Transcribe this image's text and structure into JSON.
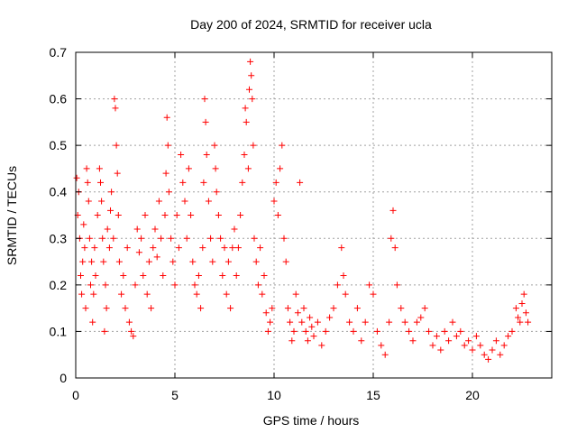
{
  "chart_data": {
    "type": "scatter",
    "title": "Day 200 of 2024, SRMTID for receiver ucla",
    "xlabel": "GPS time / hours",
    "ylabel": "SRMTID / TECUs",
    "xlim": [
      0,
      24
    ],
    "ylim": [
      0,
      0.7
    ],
    "x_ticks": [
      0,
      5,
      10,
      15,
      20
    ],
    "x_tick_labels": [
      "0",
      "5",
      "10",
      "15",
      "20"
    ],
    "y_ticks": [
      0,
      0.1,
      0.2,
      0.3,
      0.4,
      0.5,
      0.6,
      0.7
    ],
    "y_tick_labels": [
      "0",
      "0.1",
      "0.2",
      "0.3",
      "0.4",
      "0.5",
      "0.6",
      "0.7"
    ],
    "grid": true,
    "marker": "+",
    "color": "#ff0000",
    "series": [
      {
        "name": "SRMTID",
        "points": [
          [
            0.05,
            0.43
          ],
          [
            0.1,
            0.35
          ],
          [
            0.15,
            0.4
          ],
          [
            0.2,
            0.3
          ],
          [
            0.25,
            0.22
          ],
          [
            0.3,
            0.18
          ],
          [
            0.35,
            0.25
          ],
          [
            0.4,
            0.33
          ],
          [
            0.45,
            0.28
          ],
          [
            0.5,
            0.15
          ],
          [
            0.55,
            0.45
          ],
          [
            0.6,
            0.42
          ],
          [
            0.65,
            0.38
          ],
          [
            0.7,
            0.3
          ],
          [
            0.75,
            0.2
          ],
          [
            0.8,
            0.25
          ],
          [
            0.85,
            0.12
          ],
          [
            0.9,
            0.18
          ],
          [
            0.95,
            0.28
          ],
          [
            1.0,
            0.22
          ],
          [
            1.1,
            0.35
          ],
          [
            1.2,
            0.45
          ],
          [
            1.25,
            0.42
          ],
          [
            1.3,
            0.38
          ],
          [
            1.35,
            0.3
          ],
          [
            1.4,
            0.25
          ],
          [
            1.45,
            0.1
          ],
          [
            1.5,
            0.2
          ],
          [
            1.55,
            0.15
          ],
          [
            1.6,
            0.32
          ],
          [
            1.7,
            0.28
          ],
          [
            1.75,
            0.36
          ],
          [
            1.8,
            0.4
          ],
          [
            1.9,
            0.3
          ],
          [
            1.95,
            0.6
          ],
          [
            2.0,
            0.58
          ],
          [
            2.05,
            0.5
          ],
          [
            2.1,
            0.44
          ],
          [
            2.15,
            0.35
          ],
          [
            2.2,
            0.25
          ],
          [
            2.3,
            0.18
          ],
          [
            2.4,
            0.22
          ],
          [
            2.5,
            0.15
          ],
          [
            2.6,
            0.28
          ],
          [
            2.7,
            0.12
          ],
          [
            2.8,
            0.1
          ],
          [
            2.9,
            0.09
          ],
          [
            3.0,
            0.2
          ],
          [
            3.1,
            0.32
          ],
          [
            3.2,
            0.27
          ],
          [
            3.3,
            0.3
          ],
          [
            3.4,
            0.22
          ],
          [
            3.5,
            0.35
          ],
          [
            3.6,
            0.18
          ],
          [
            3.7,
            0.25
          ],
          [
            3.8,
            0.15
          ],
          [
            3.9,
            0.28
          ],
          [
            4.0,
            0.32
          ],
          [
            4.1,
            0.26
          ],
          [
            4.2,
            0.38
          ],
          [
            4.3,
            0.3
          ],
          [
            4.4,
            0.22
          ],
          [
            4.5,
            0.35
          ],
          [
            4.55,
            0.44
          ],
          [
            4.6,
            0.56
          ],
          [
            4.65,
            0.5
          ],
          [
            4.7,
            0.4
          ],
          [
            4.8,
            0.3
          ],
          [
            4.9,
            0.25
          ],
          [
            5.0,
            0.2
          ],
          [
            5.1,
            0.35
          ],
          [
            5.2,
            0.28
          ],
          [
            5.3,
            0.48
          ],
          [
            5.4,
            0.42
          ],
          [
            5.5,
            0.38
          ],
          [
            5.6,
            0.3
          ],
          [
            5.7,
            0.45
          ],
          [
            5.8,
            0.35
          ],
          [
            5.9,
            0.25
          ],
          [
            6.0,
            0.2
          ],
          [
            6.1,
            0.18
          ],
          [
            6.2,
            0.22
          ],
          [
            6.3,
            0.15
          ],
          [
            6.4,
            0.28
          ],
          [
            6.45,
            0.42
          ],
          [
            6.5,
            0.6
          ],
          [
            6.55,
            0.55
          ],
          [
            6.6,
            0.48
          ],
          [
            6.7,
            0.38
          ],
          [
            6.8,
            0.3
          ],
          [
            6.9,
            0.25
          ],
          [
            7.0,
            0.5
          ],
          [
            7.05,
            0.45
          ],
          [
            7.1,
            0.4
          ],
          [
            7.2,
            0.35
          ],
          [
            7.3,
            0.3
          ],
          [
            7.4,
            0.22
          ],
          [
            7.5,
            0.28
          ],
          [
            7.6,
            0.18
          ],
          [
            7.7,
            0.25
          ],
          [
            7.8,
            0.15
          ],
          [
            7.9,
            0.28
          ],
          [
            8.0,
            0.32
          ],
          [
            8.1,
            0.22
          ],
          [
            8.2,
            0.28
          ],
          [
            8.3,
            0.35
          ],
          [
            8.4,
            0.42
          ],
          [
            8.5,
            0.48
          ],
          [
            8.55,
            0.58
          ],
          [
            8.6,
            0.55
          ],
          [
            8.7,
            0.45
          ],
          [
            8.75,
            0.62
          ],
          [
            8.8,
            0.68
          ],
          [
            8.85,
            0.65
          ],
          [
            8.9,
            0.6
          ],
          [
            8.95,
            0.5
          ],
          [
            9.0,
            0.3
          ],
          [
            9.1,
            0.25
          ],
          [
            9.2,
            0.2
          ],
          [
            9.3,
            0.28
          ],
          [
            9.4,
            0.18
          ],
          [
            9.5,
            0.22
          ],
          [
            9.6,
            0.14
          ],
          [
            9.7,
            0.1
          ],
          [
            9.8,
            0.12
          ],
          [
            9.9,
            0.15
          ],
          [
            10.0,
            0.38
          ],
          [
            10.1,
            0.42
          ],
          [
            10.2,
            0.35
          ],
          [
            10.3,
            0.45
          ],
          [
            10.4,
            0.5
          ],
          [
            10.5,
            0.3
          ],
          [
            10.6,
            0.25
          ],
          [
            10.7,
            0.15
          ],
          [
            10.8,
            0.12
          ],
          [
            10.9,
            0.08
          ],
          [
            11.0,
            0.1
          ],
          [
            11.1,
            0.18
          ],
          [
            11.2,
            0.14
          ],
          [
            11.3,
            0.42
          ],
          [
            11.4,
            0.12
          ],
          [
            11.5,
            0.15
          ],
          [
            11.6,
            0.1
          ],
          [
            11.7,
            0.08
          ],
          [
            11.8,
            0.13
          ],
          [
            11.9,
            0.11
          ],
          [
            12.0,
            0.09
          ],
          [
            12.2,
            0.12
          ],
          [
            12.4,
            0.07
          ],
          [
            12.6,
            0.1
          ],
          [
            12.8,
            0.13
          ],
          [
            13.0,
            0.15
          ],
          [
            13.2,
            0.2
          ],
          [
            13.4,
            0.28
          ],
          [
            13.5,
            0.22
          ],
          [
            13.6,
            0.18
          ],
          [
            13.8,
            0.12
          ],
          [
            14.0,
            0.1
          ],
          [
            14.2,
            0.15
          ],
          [
            14.4,
            0.08
          ],
          [
            14.6,
            0.12
          ],
          [
            14.8,
            0.2
          ],
          [
            15.0,
            0.18
          ],
          [
            15.2,
            0.1
          ],
          [
            15.4,
            0.07
          ],
          [
            15.6,
            0.05
          ],
          [
            15.8,
            0.12
          ],
          [
            15.9,
            0.3
          ],
          [
            16.0,
            0.36
          ],
          [
            16.1,
            0.28
          ],
          [
            16.2,
            0.2
          ],
          [
            16.4,
            0.15
          ],
          [
            16.6,
            0.12
          ],
          [
            16.8,
            0.1
          ],
          [
            17.0,
            0.08
          ],
          [
            17.2,
            0.12
          ],
          [
            17.4,
            0.13
          ],
          [
            17.6,
            0.15
          ],
          [
            17.8,
            0.1
          ],
          [
            18.0,
            0.07
          ],
          [
            18.2,
            0.09
          ],
          [
            18.4,
            0.06
          ],
          [
            18.6,
            0.1
          ],
          [
            18.8,
            0.08
          ],
          [
            19.0,
            0.12
          ],
          [
            19.2,
            0.09
          ],
          [
            19.4,
            0.1
          ],
          [
            19.6,
            0.07
          ],
          [
            19.8,
            0.08
          ],
          [
            20.0,
            0.06
          ],
          [
            20.2,
            0.09
          ],
          [
            20.4,
            0.07
          ],
          [
            20.6,
            0.05
          ],
          [
            20.8,
            0.04
          ],
          [
            21.0,
            0.06
          ],
          [
            21.2,
            0.08
          ],
          [
            21.4,
            0.05
          ],
          [
            21.6,
            0.07
          ],
          [
            21.8,
            0.09
          ],
          [
            22.0,
            0.1
          ],
          [
            22.2,
            0.15
          ],
          [
            22.3,
            0.13
          ],
          [
            22.4,
            0.12
          ],
          [
            22.5,
            0.16
          ],
          [
            22.6,
            0.18
          ],
          [
            22.7,
            0.14
          ],
          [
            22.8,
            0.12
          ]
        ]
      }
    ]
  }
}
